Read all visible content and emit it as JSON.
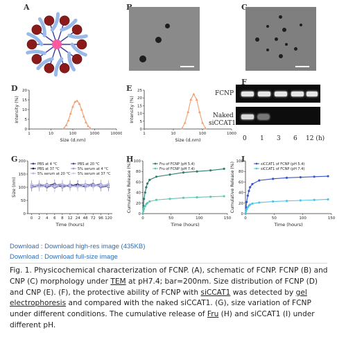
{
  "panels": {
    "A": {
      "label": "A"
    },
    "B": {
      "label": "B"
    },
    "C": {
      "label": "C"
    },
    "D": {
      "label": "D"
    },
    "E": {
      "label": "E"
    },
    "F": {
      "label": "F"
    },
    "G": {
      "label": "G"
    },
    "H": {
      "label": "H"
    },
    "I": {
      "label": "I"
    }
  },
  "gel": {
    "row1_label": "FCNP",
    "row2_label_line1": "Naked",
    "row2_label_line2": "siCCAT1",
    "time_labels": [
      "0",
      "1",
      "3",
      "6",
      "12 (h)"
    ]
  },
  "chart_data": [
    {
      "id": "D",
      "type": "line",
      "xlabel": "Size (d.nm)",
      "ylabel": "Intensity (%)",
      "xscale": "log",
      "xlim": [
        1,
        10000
      ],
      "ylim": [
        0,
        20
      ],
      "xticks": [
        "1",
        "10",
        "100",
        "1000",
        "10000"
      ],
      "yticks": [
        "0",
        "5",
        "10",
        "15",
        "20"
      ],
      "series": [
        {
          "x": [
            40,
            50,
            63,
            79,
            100,
            126,
            158,
            200,
            251,
            316,
            398,
            501,
            631
          ],
          "y": [
            0.5,
            2,
            4.5,
            8,
            11.5,
            14,
            14.5,
            13,
            10,
            6.5,
            3.5,
            1.5,
            0.4
          ]
        }
      ],
      "color": "#f0a070"
    },
    {
      "id": "E",
      "type": "line",
      "xlabel": "Size (d.nm)",
      "ylabel": "Intensity (%)",
      "xscale": "log",
      "xlim": [
        1,
        1000
      ],
      "ylim": [
        0,
        25
      ],
      "xticks": [
        "1",
        "10",
        "100",
        "1000"
      ],
      "yticks": [
        "0",
        "5",
        "10",
        "15",
        "20",
        "25"
      ],
      "series": [
        {
          "x": [
            20,
            25,
            32,
            40,
            50,
            63,
            79,
            100,
            126
          ],
          "y": [
            0.5,
            4,
            11,
            19,
            22.5,
            19,
            11,
            4,
            0.5
          ]
        }
      ],
      "color": "#f0a070"
    },
    {
      "id": "G",
      "type": "line",
      "xlabel": "Time (hours)",
      "ylabel": "Size (nm)",
      "ylim": [
        0,
        200
      ],
      "yticks": [
        "0",
        "50",
        "100",
        "150",
        "200"
      ],
      "categories": [
        "0",
        "2",
        "4",
        "6",
        "8",
        "12",
        "24",
        "48",
        "72",
        "96",
        "120"
      ],
      "series": [
        {
          "name": "PBS at 4 °C",
          "values": [
            105,
            110,
            100,
            108,
            112,
            104,
            109,
            111,
            103,
            108,
            106
          ],
          "color": "#3a3a8c"
        },
        {
          "name": "PBS at 20 °C",
          "values": [
            100,
            104,
            112,
            99,
            106,
            110,
            102,
            107,
            113,
            100,
            104
          ],
          "color": "#4a4aa0"
        },
        {
          "name": "PBS at 37 °C",
          "values": [
            110,
            101,
            106,
            113,
            100,
            108,
            111,
            101,
            107,
            112,
            101
          ],
          "color": "#1a1a55"
        },
        {
          "name": "5% serum at 4 °C",
          "values": [
            108,
            106,
            103,
            110,
            107,
            101,
            106,
            112,
            108,
            103,
            110
          ],
          "color": "#9a9ad0"
        },
        {
          "name": "5% serum at 20 °C",
          "values": [
            102,
            112,
            108,
            104,
            101,
            113,
            104,
            100,
            110,
            106,
            112
          ],
          "color": "#b0b0dd"
        },
        {
          "name": "5% serum at 37 °C",
          "values": [
            112,
            100,
            110,
            102,
            112,
            106,
            100,
            109,
            101,
            111,
            103
          ],
          "color": "#c6c6e8"
        }
      ]
    },
    {
      "id": "H",
      "type": "line",
      "xlabel": "Time (hours)",
      "ylabel": "Cumulative Release (%)",
      "xlim": [
        0,
        150
      ],
      "ylim": [
        0,
        100
      ],
      "xticks": [
        "0",
        "50",
        "100",
        "150"
      ],
      "yticks": [
        "0",
        "20",
        "40",
        "60",
        "80",
        "100"
      ],
      "series": [
        {
          "name": "Fru of FCNP (pH 5.4)",
          "x": [
            0,
            1,
            2,
            4,
            6,
            8,
            12,
            24,
            48,
            72,
            96,
            120,
            144
          ],
          "y": [
            0,
            15,
            28,
            40,
            50,
            57,
            64,
            70,
            74,
            78,
            80,
            82,
            85
          ],
          "color": "#2e7d6e"
        },
        {
          "name": "Fru of FCNP (pH 7.4)",
          "x": [
            0,
            1,
            2,
            4,
            6,
            8,
            12,
            24,
            48,
            72,
            96,
            120,
            144
          ],
          "y": [
            0,
            5,
            9,
            14,
            18,
            20,
            23,
            26,
            28,
            30,
            31,
            32,
            33
          ],
          "color": "#5ec7b4"
        }
      ]
    },
    {
      "id": "I",
      "type": "line",
      "xlabel": "Time (hours)",
      "ylabel": "Cumulative Release (%)",
      "xlim": [
        0,
        150
      ],
      "ylim": [
        0,
        100
      ],
      "xticks": [
        "0",
        "50",
        "100",
        "150"
      ],
      "yticks": [
        "0",
        "20",
        "40",
        "60",
        "80",
        "100"
      ],
      "series": [
        {
          "name": "siCCAT1 of FCNP (pH 5.4)",
          "x": [
            0,
            1,
            2,
            4,
            6,
            8,
            12,
            24,
            48,
            72,
            96,
            120,
            144
          ],
          "y": [
            0,
            12,
            22,
            34,
            43,
            50,
            56,
            63,
            66,
            68,
            69,
            70,
            71
          ],
          "color": "#3a55c8"
        },
        {
          "name": "siCCAT1 of FCNP (pH 7.4)",
          "x": [
            0,
            1,
            2,
            4,
            6,
            8,
            12,
            24,
            48,
            72,
            96,
            120,
            144
          ],
          "y": [
            0,
            4,
            8,
            12,
            15,
            17,
            19,
            21,
            23,
            24,
            25,
            26,
            27
          ],
          "color": "#4fc3e8"
        }
      ]
    }
  ],
  "downloads": {
    "hires": "Download : Download high-res image (435KB)",
    "full": "Download : Download full-size image"
  },
  "caption": {
    "p1": "Fig. 1. Physicochemical characterization of FCNP. (A), schematic of FCNP. FCNP (B) and CNP (C) morphology under ",
    "tem": "TEM",
    "p2": " at pH7.4; bar=200nm. Size distribution of FCNP (D) and CNP (E). (F), the protective ability of FCNP with ",
    "sicc": "siCCAT1",
    "p3": " was detected by ",
    "gel": "gel electrophoresis",
    "p4": " and compared with the naked siCCAT1. (G), size variation of FCNP under different conditions. The cumulative release of ",
    "fru": "Fru",
    "p5": " (H) and siCCAT1 (I) under different pH."
  }
}
